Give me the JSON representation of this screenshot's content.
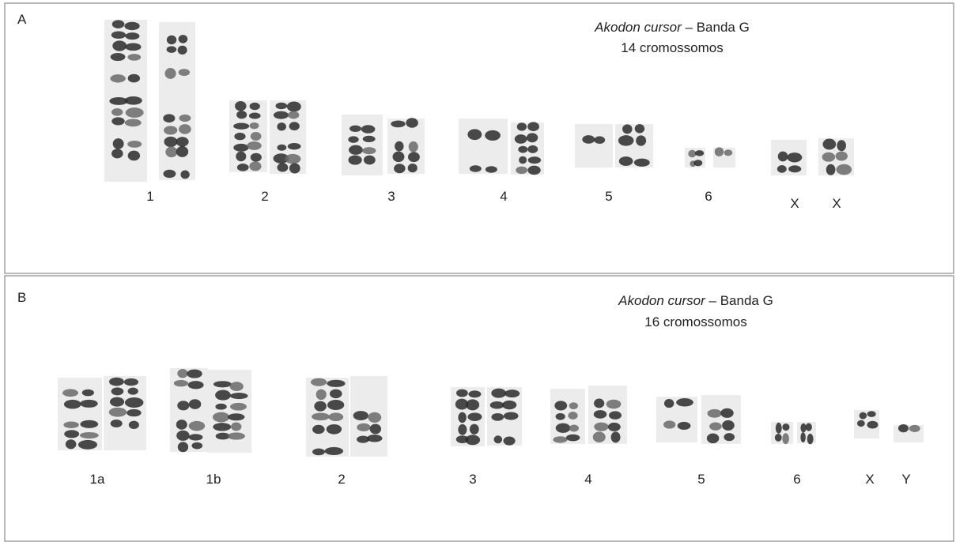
{
  "panels": [
    {
      "letter": "A",
      "species": "Akodon cursor",
      "title_rest": " – Banda G",
      "subtitle": "14 cromossomos",
      "chromosomes": [
        "1",
        "2",
        "3",
        "4",
        "5",
        "6",
        "X",
        "X"
      ]
    },
    {
      "letter": "B",
      "species": "Akodon cursor",
      "title_rest": " – Banda G",
      "subtitle": "16 cromossomos",
      "chromosomes": [
        "1a",
        "1b",
        "2",
        "3",
        "4",
        "5",
        "6",
        "X",
        "Y"
      ]
    }
  ]
}
